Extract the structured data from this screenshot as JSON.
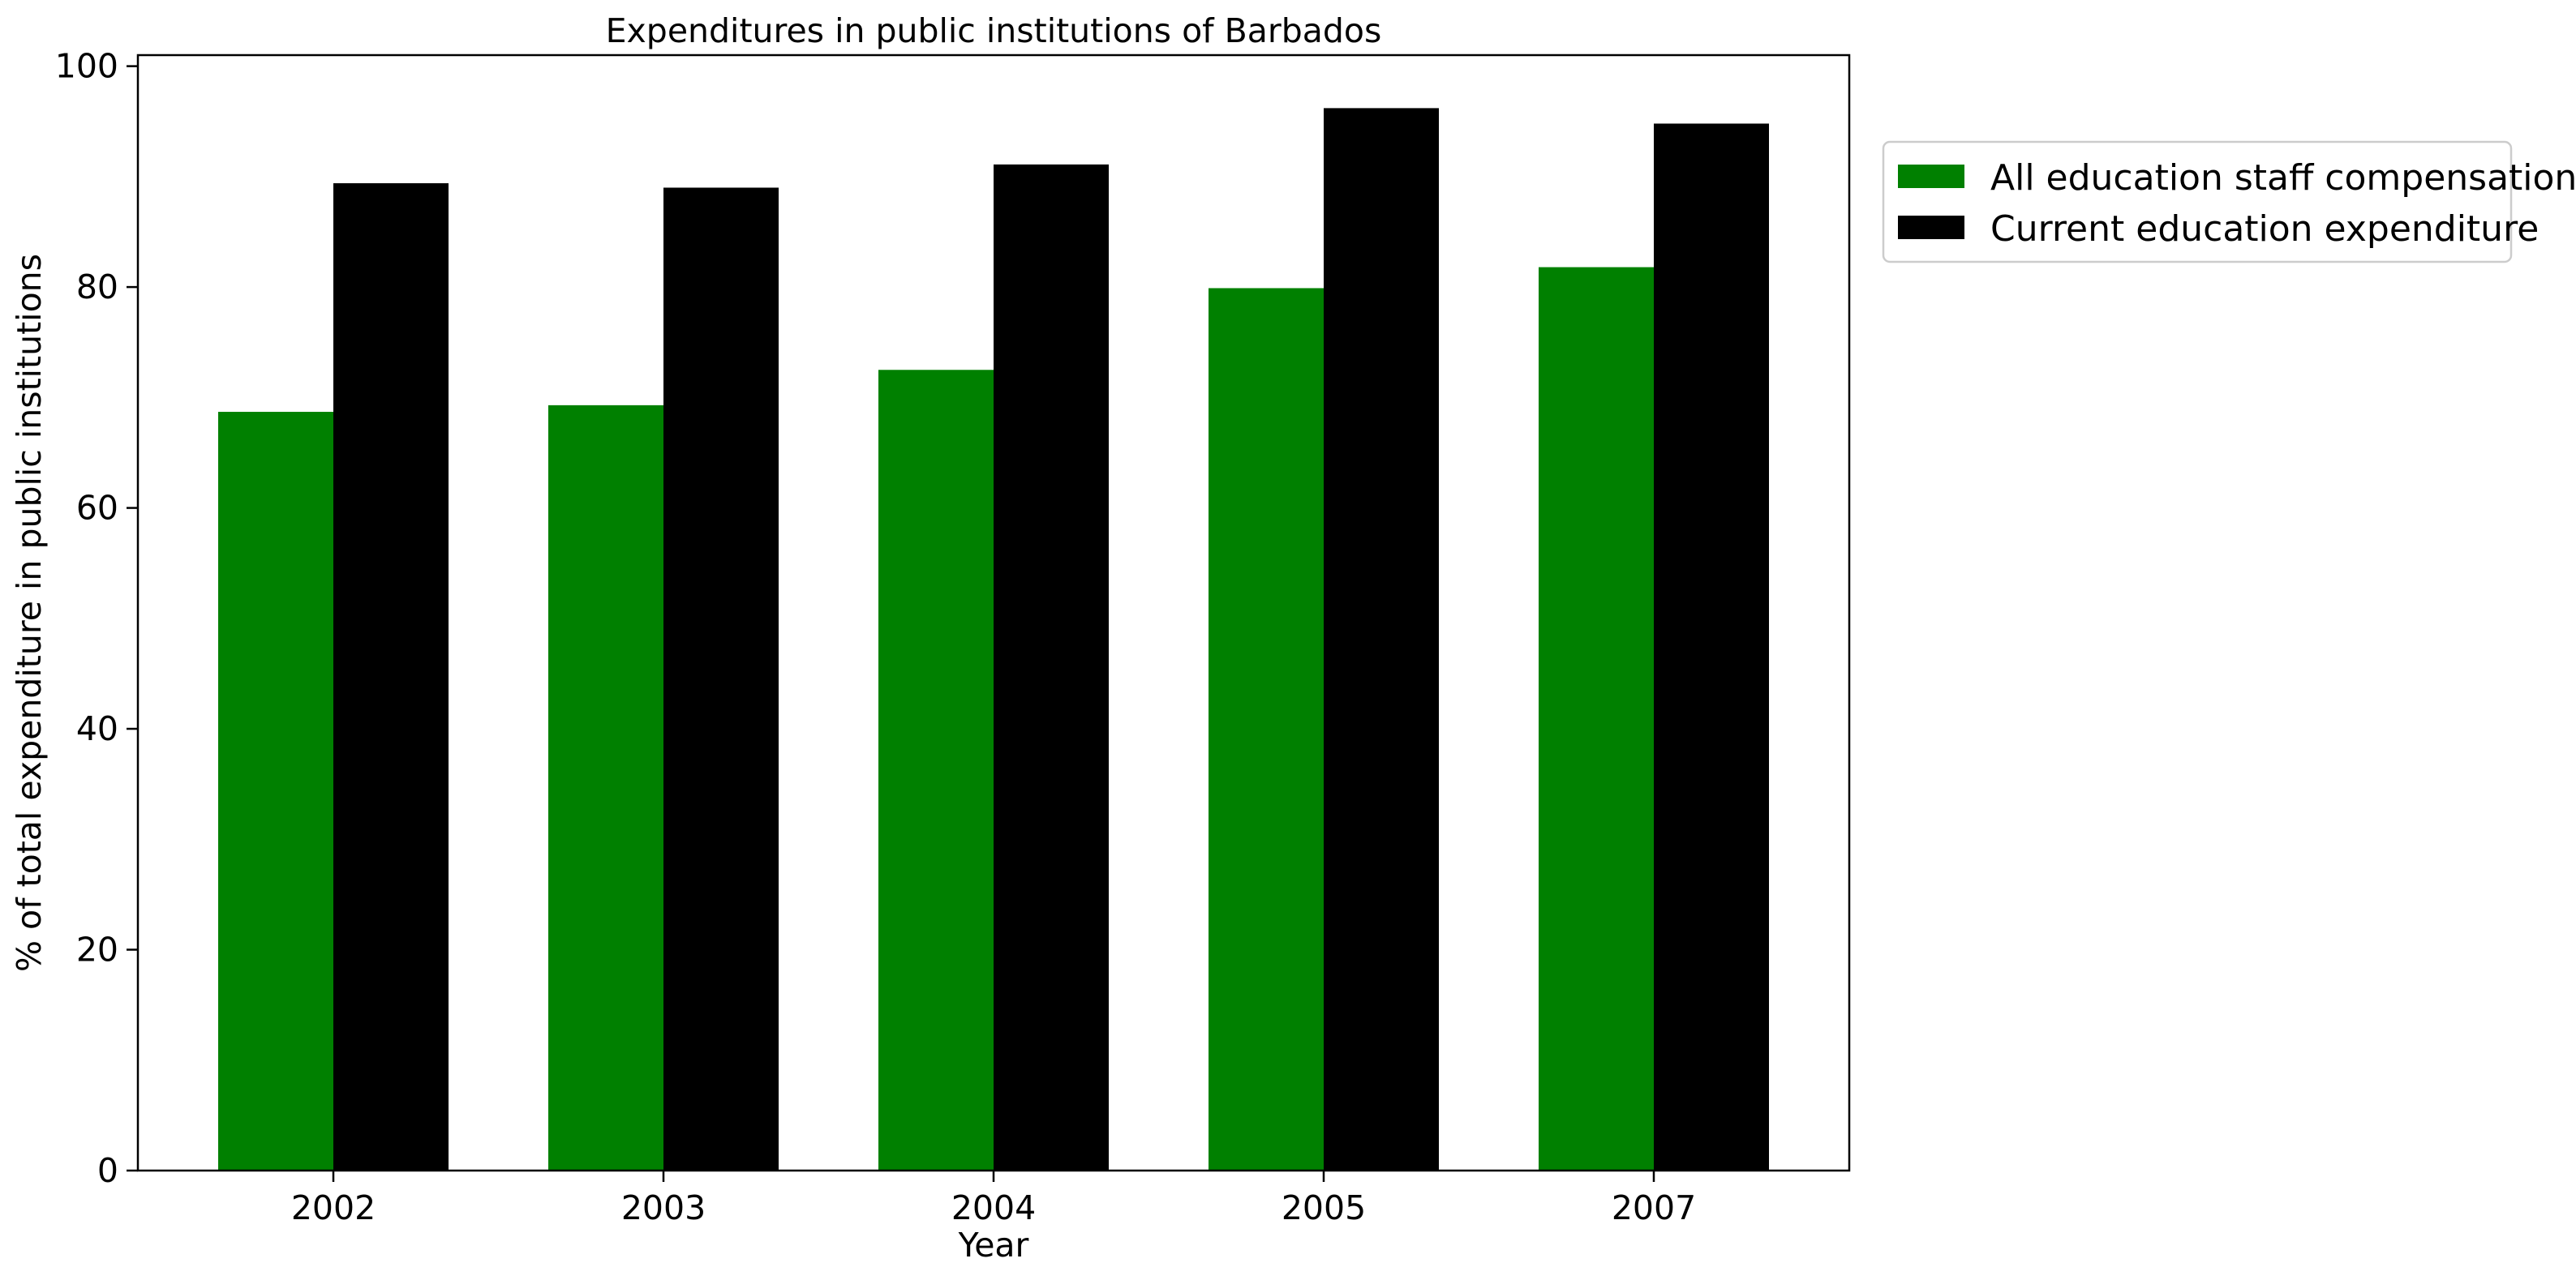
{
  "chart_data": {
    "type": "bar",
    "title": "Expenditures in public institutions of Barbados",
    "xlabel": "Year",
    "ylabel": "% of total expenditure in public institutions",
    "categories": [
      "2002",
      "2003",
      "2004",
      "2005",
      "2007"
    ],
    "series": [
      {
        "name": "All education staff compensation",
        "color": "#008000",
        "values": [
          68.7,
          69.3,
          72.5,
          79.9,
          81.8
        ]
      },
      {
        "name": "Current education expenditure",
        "color": "#000000",
        "values": [
          89.4,
          89.0,
          91.1,
          96.2,
          94.8
        ]
      }
    ],
    "ylim": [
      0,
      101
    ],
    "yticks": [
      0,
      20,
      40,
      60,
      80,
      100
    ],
    "grid": false,
    "legend_position": "outside-top-right"
  }
}
